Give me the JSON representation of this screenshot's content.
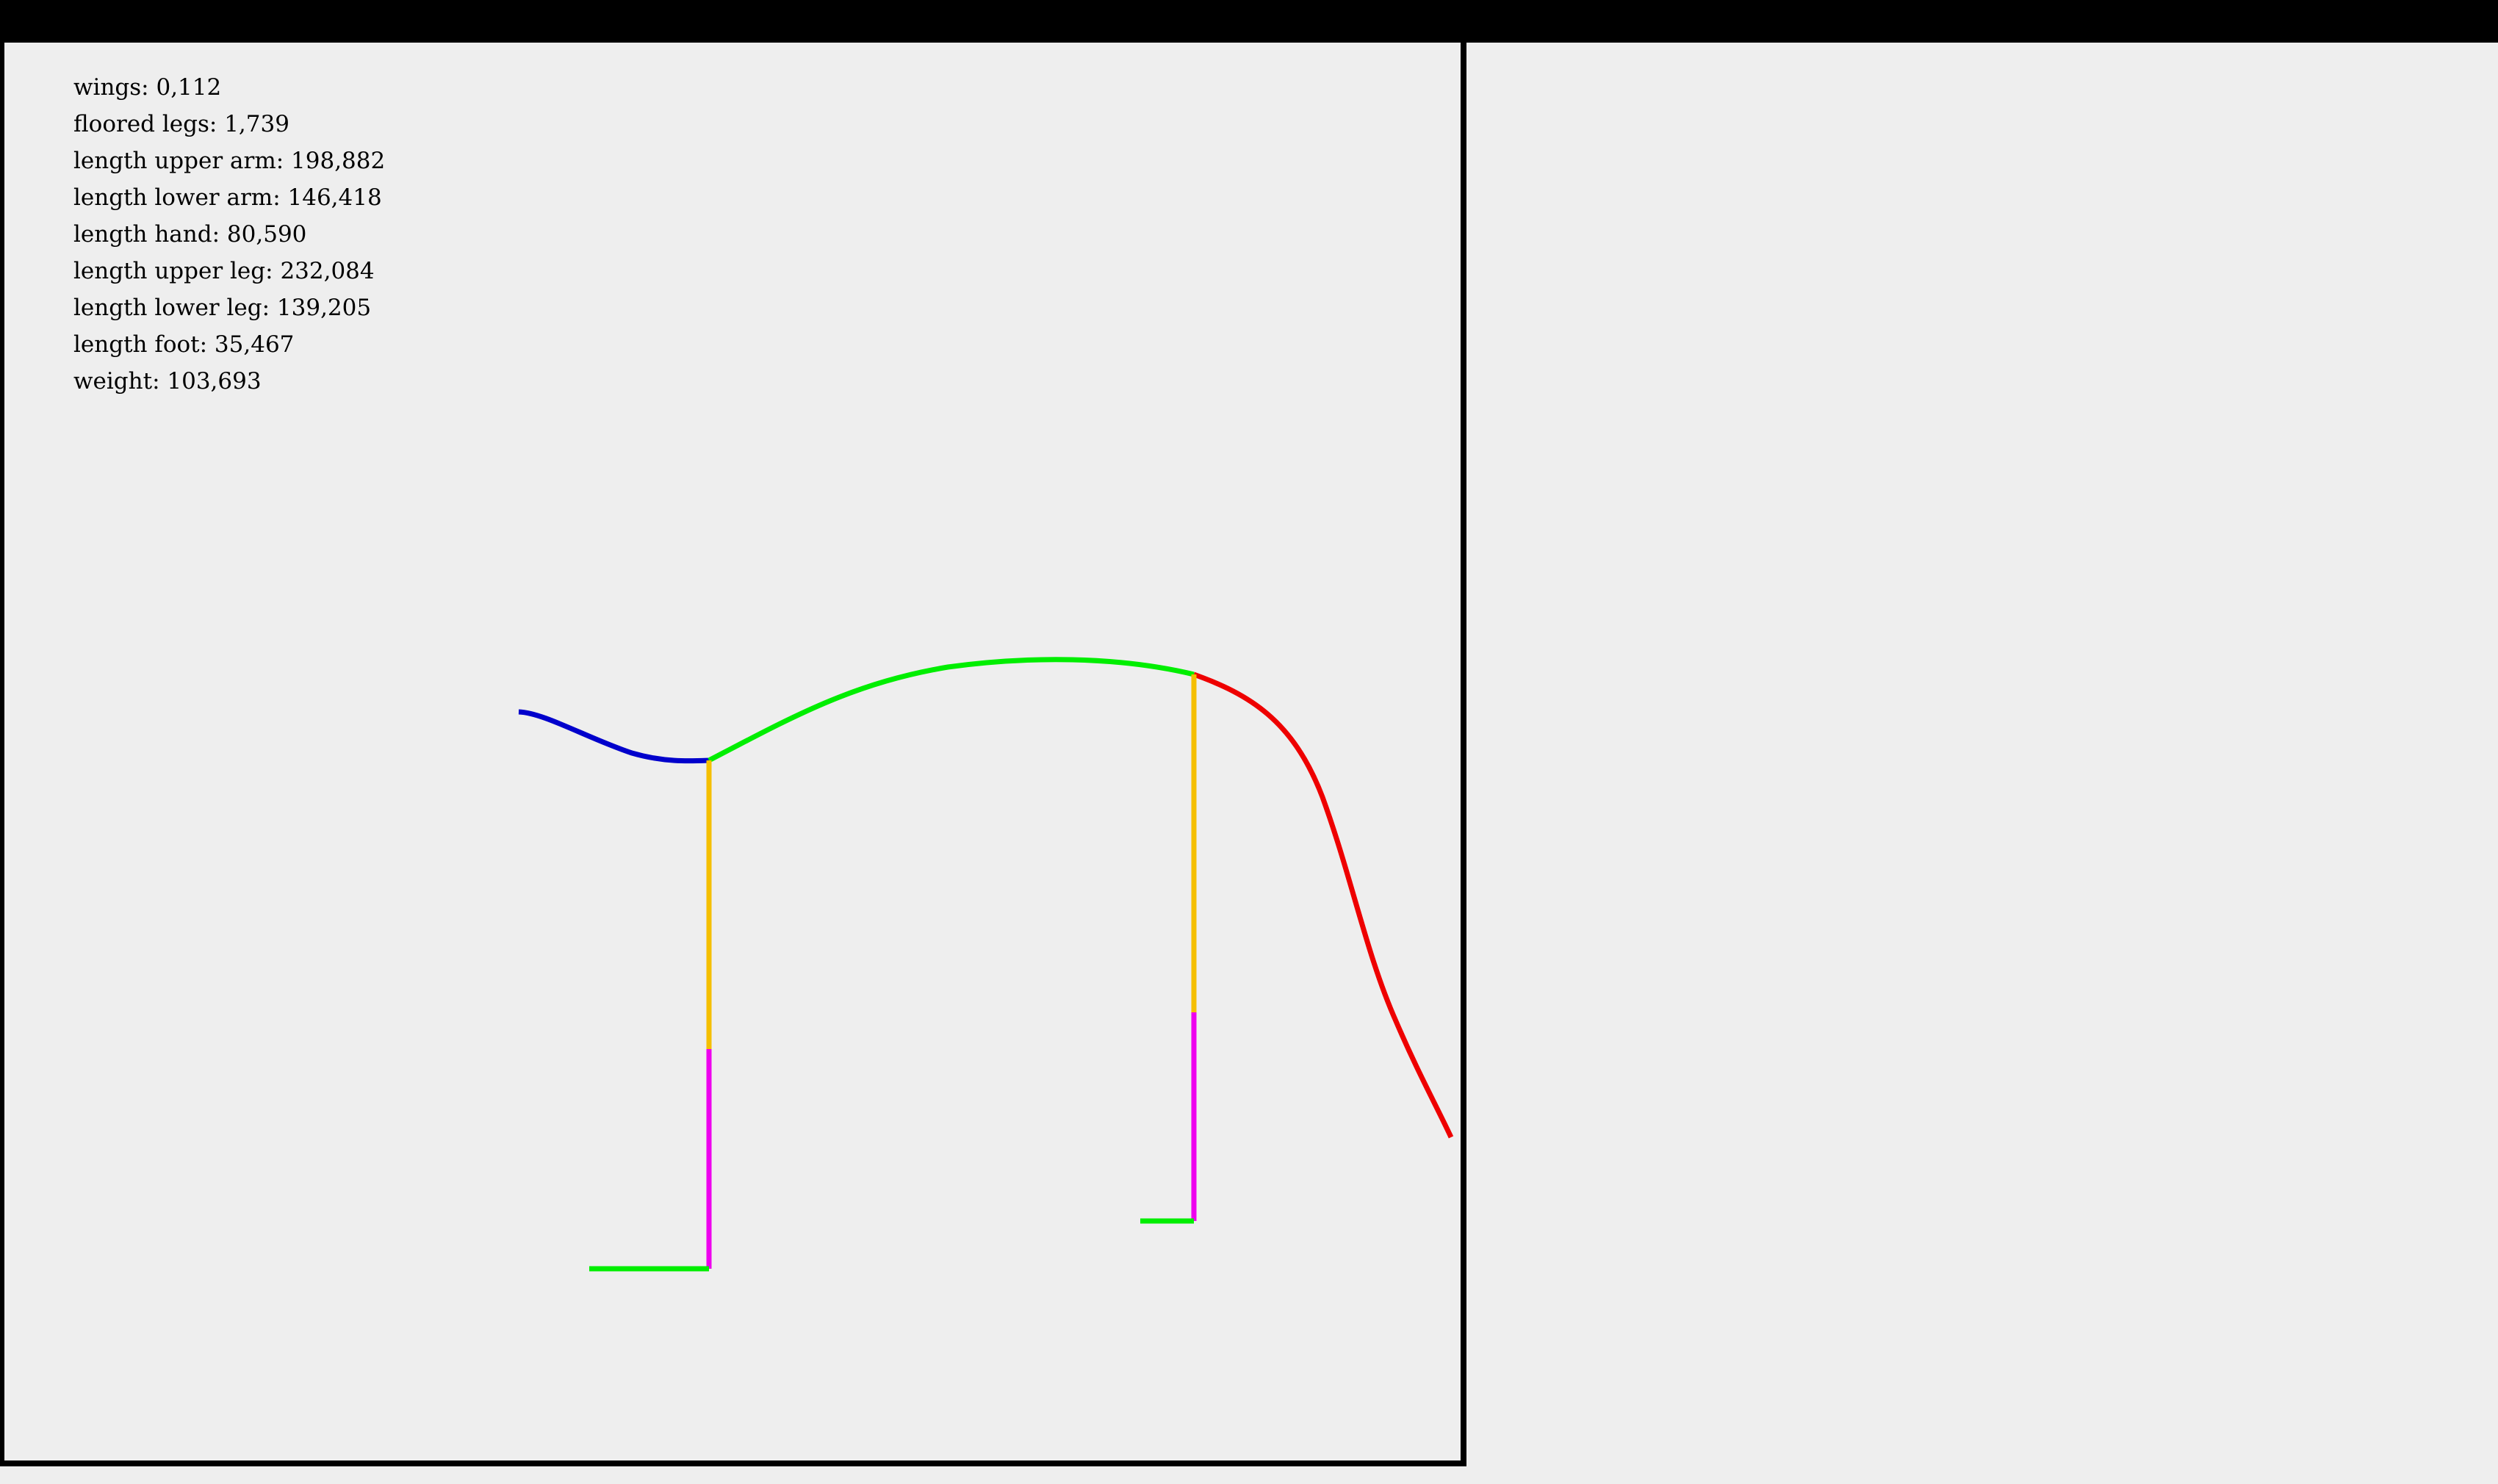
{
  "stats": [
    {
      "label": "wings",
      "value": "0,112"
    },
    {
      "label": "floored legs",
      "value": "1,739"
    },
    {
      "label": "length upper arm",
      "value": "198,882"
    },
    {
      "label": "length lower arm",
      "value": "146,418"
    },
    {
      "label": "length hand",
      "value": "80,590"
    },
    {
      "label": "length upper leg",
      "value": "232,084"
    },
    {
      "label": "length lower leg",
      "value": "139,205"
    },
    {
      "label": "length foot",
      "value": "35,467"
    },
    {
      "label": "weight",
      "value": "103,693"
    }
  ],
  "colors": {
    "background": "#eeeeee",
    "frame": "#000000",
    "head": "#0000cc",
    "body": "#00ee00",
    "tail": "#ee0000",
    "upper_leg": "#f5bf00",
    "lower_leg": "#ee00ee",
    "foot": "#00ee00"
  }
}
